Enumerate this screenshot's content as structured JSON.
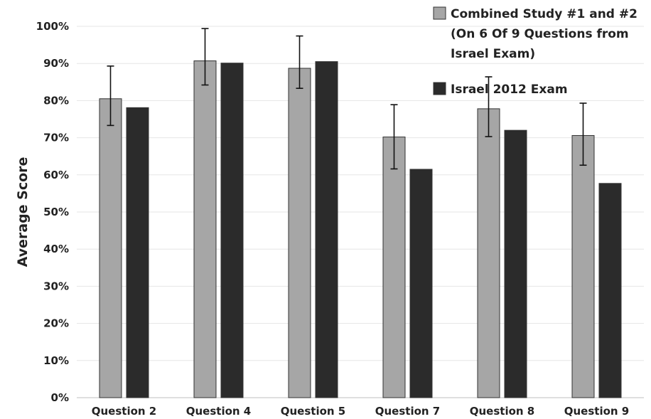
{
  "chart_data": {
    "type": "bar",
    "categories": [
      "Question 2",
      "Question 4",
      "Question 5",
      "Question 7",
      "Question 8",
      "Question 9"
    ],
    "series": [
      {
        "name": "Combined Study #1 and #2 (On 6 Of 9 Questions from Israel Exam)",
        "legend_lines": [
          "Combined Study #1 and #2",
          "(On 6 Of 9 Questions from",
          "Israel Exam)"
        ],
        "color": "#a6a6a6",
        "values": [
          80.5,
          90.7,
          88.7,
          70.2,
          77.8,
          70.6
        ],
        "error_low": [
          73.3,
          84.2,
          83.3,
          61.6,
          70.3,
          62.6
        ],
        "error_high": [
          89.3,
          99.4,
          97.4,
          78.9,
          86.4,
          79.3
        ]
      },
      {
        "name": "Israel 2012 Exam",
        "legend_lines": [
          "Israel 2012 Exam"
        ],
        "color": "#2b2b2b",
        "values": [
          78.1,
          90.1,
          90.5,
          61.5,
          72.0,
          57.7
        ]
      }
    ],
    "ylabel": "Average Score",
    "xlabel": "",
    "ylim": [
      0,
      100
    ],
    "yticks": [
      "0%",
      "10%",
      "20%",
      "30%",
      "40%",
      "50%",
      "60%",
      "70%",
      "80%",
      "90%",
      "100%"
    ],
    "grid": true,
    "legend_position": "top-right"
  }
}
